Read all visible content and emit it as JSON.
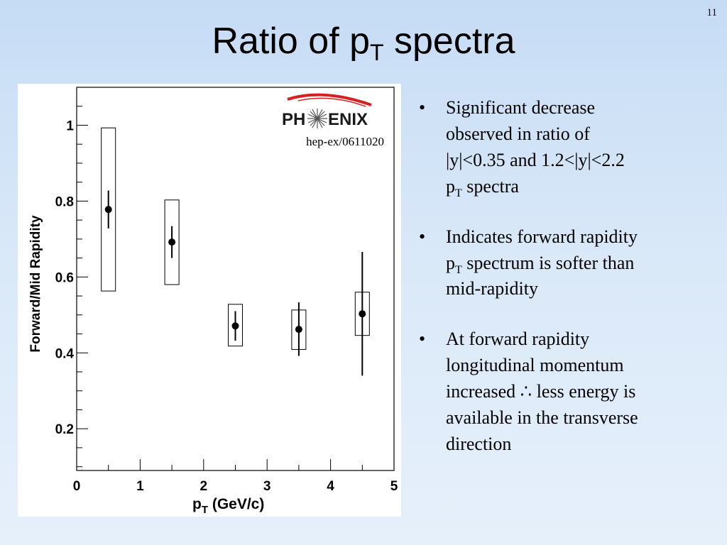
{
  "slide": {
    "number": "11",
    "title_main": "Ratio of p",
    "title_sub": "T",
    "title_rest": " spectra"
  },
  "bullets": [
    {
      "lines": [
        "Significant decrease",
        "observed in ratio of",
        "|y|<0.35 and 1.2<|y|<2.2"
      ],
      "sub_base": "p",
      "sub_text": "T",
      "sub_after": " spectra"
    },
    {
      "lines": [
        "Indicates forward rapidity"
      ],
      "sub_base": "p",
      "sub_text": "T",
      "sub_after": " spectrum is softer than",
      "trailing": [
        "mid-rapidity"
      ]
    },
    {
      "lines": [
        "At forward rapidity",
        "longitudinal momentum",
        "increased ∴ less energy is",
        "available in the transverse",
        "direction"
      ]
    }
  ],
  "chart_data": {
    "type": "scatter",
    "logo_text_left": "PH",
    "logo_text_right": "ENIX",
    "annotation": "hep-ex/0611020",
    "xlabel_main": "p",
    "xlabel_sub": "T",
    "xlabel_rest": " (GeV/c)",
    "ylabel": "Forward/Mid Rapidity",
    "xlim": [
      0,
      5
    ],
    "ylim": [
      0.09,
      1.1
    ],
    "x_ticks": [
      0,
      1,
      2,
      3,
      4,
      5
    ],
    "y_ticks": [
      0.2,
      0.4,
      0.6,
      0.8,
      1
    ],
    "y_tick_labels": [
      "0.2",
      "0.4",
      "0.6",
      "0.8",
      "1"
    ],
    "grid": false,
    "points": [
      {
        "x": 0.5,
        "y": 0.778,
        "err_low": 0.728,
        "err_high": 0.828,
        "sys_low": 0.563,
        "sys_high": 0.993
      },
      {
        "x": 1.5,
        "y": 0.692,
        "err_low": 0.65,
        "err_high": 0.734,
        "sys_low": 0.58,
        "sys_high": 0.803
      },
      {
        "x": 2.5,
        "y": 0.471,
        "err_low": 0.432,
        "err_high": 0.51,
        "sys_low": 0.418,
        "sys_high": 0.528
      },
      {
        "x": 3.5,
        "y": 0.462,
        "err_low": 0.392,
        "err_high": 0.533,
        "sys_low": 0.409,
        "sys_high": 0.513
      },
      {
        "x": 4.5,
        "y": 0.503,
        "err_low": 0.34,
        "err_high": 0.666,
        "sys_low": 0.446,
        "sys_high": 0.56
      }
    ],
    "colors": {
      "marker": "#000000",
      "logo_arc": "#d42020",
      "logo_text": "#1a1a1a"
    }
  }
}
